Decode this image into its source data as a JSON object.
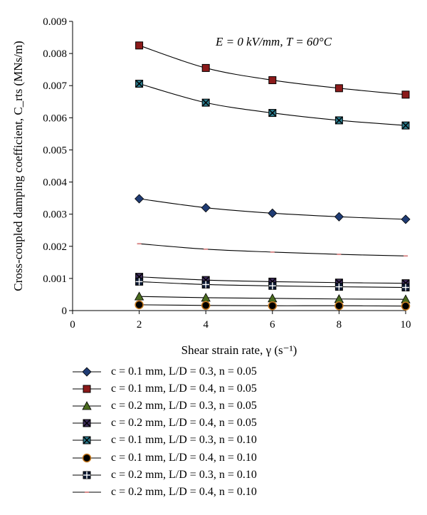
{
  "chart_data": {
    "type": "line",
    "annotation": "E = 0 kV/mm, T = 60°C",
    "ylabel": "Cross-coupled damping coefficient, C_rts (MNs/m)",
    "xlabel": "Shear strain rate, γ (s⁻¹)",
    "xlim": [
      0,
      10
    ],
    "ylim": [
      0,
      0.009
    ],
    "xticks": [
      "0",
      "2",
      "4",
      "6",
      "8",
      "10"
    ],
    "yticks": [
      "0",
      "0.001",
      "0.002",
      "0.003",
      "0.004",
      "0.005",
      "0.006",
      "0.007",
      "0.008",
      "0.009"
    ],
    "grid": false,
    "legend_position": "bottom",
    "x": [
      2,
      4,
      6,
      8,
      10
    ],
    "series": [
      {
        "name": "c = 0.1 mm, L/D = 0.3, n = 0.05",
        "marker": "diamond",
        "fill": "#1f3b73",
        "values": [
          0.00348,
          0.0032,
          0.00303,
          0.00292,
          0.00284
        ]
      },
      {
        "name": "c = 0.1 mm, L/D = 0.4, n = 0.05",
        "marker": "square",
        "fill": "#8b1a1a",
        "values": [
          0.00825,
          0.00755,
          0.00717,
          0.00692,
          0.00672
        ]
      },
      {
        "name": "c = 0.2 mm, L/D = 0.3, n = 0.05",
        "marker": "triangle",
        "fill": "#4a6b1f",
        "values": [
          0.00044,
          0.0004,
          0.00038,
          0.00036,
          0.00035
        ]
      },
      {
        "name": "c = 0.2 mm, L/D = 0.4, n = 0.05",
        "marker": "x-square",
        "fill": "#3d2b5c",
        "values": [
          0.00105,
          0.00095,
          0.0009,
          0.00087,
          0.00085
        ]
      },
      {
        "name": "c = 0.1 mm, L/D = 0.3, n = 0.10",
        "marker": "x-square",
        "fill": "#2a7a8c",
        "values": [
          0.00706,
          0.00647,
          0.00615,
          0.00592,
          0.00576
        ]
      },
      {
        "name": "c = 0.1 mm, L/D = 0.4, n = 0.10",
        "marker": "circle",
        "fill": "#c87a1e",
        "values": [
          0.00018,
          0.00016,
          0.00015,
          0.00015,
          0.00014
        ]
      },
      {
        "name": "c = 0.2 mm, L/D = 0.3, n = 0.10",
        "marker": "plus-square",
        "fill": "#1f3b73",
        "values": [
          0.0009,
          0.00081,
          0.00077,
          0.00074,
          0.00072
        ]
      },
      {
        "name": "c = 0.2 mm, L/D = 0.4, n = 0.10",
        "marker": "dash",
        "fill": "#d98a8a",
        "values": [
          0.00208,
          0.00191,
          0.00182,
          0.00175,
          0.0017
        ]
      }
    ]
  }
}
